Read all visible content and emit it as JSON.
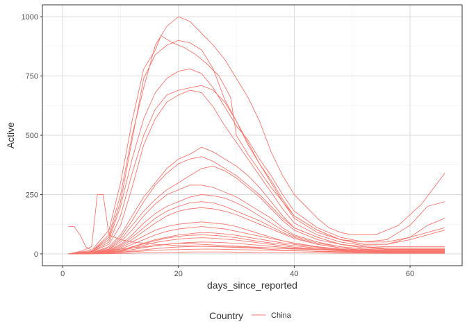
{
  "chart_data": {
    "type": "line",
    "title": "",
    "xlabel": "days_since_reported",
    "ylabel": "Active",
    "xlim": [
      -3.5,
      69
    ],
    "ylim": [
      -50,
      1050
    ],
    "x_ticks": [
      0,
      20,
      40,
      60
    ],
    "y_ticks": [
      0,
      250,
      500,
      750,
      1000
    ],
    "grid": true,
    "legend": {
      "title": "Country",
      "entries": [
        "China"
      ],
      "position": "bottom"
    },
    "series_color": "#F8766D",
    "series": [
      {
        "x": [
          1,
          5,
          8,
          10,
          12,
          14,
          16,
          18,
          20,
          22,
          24,
          26,
          28,
          30,
          32,
          34,
          36,
          38,
          40,
          42,
          44,
          46,
          48,
          50,
          54,
          58,
          62,
          66
        ],
        "values": [
          0,
          10,
          80,
          250,
          500,
          700,
          880,
          960,
          1000,
          980,
          930,
          880,
          820,
          740,
          660,
          560,
          430,
          330,
          250,
          200,
          150,
          110,
          90,
          80,
          80,
          120,
          210,
          340
        ]
      },
      {
        "x": [
          1,
          5,
          8,
          10,
          12,
          14,
          16,
          17,
          19,
          21,
          23,
          25,
          27,
          29,
          30,
          32,
          34,
          36,
          38,
          40,
          44,
          48,
          52,
          56,
          60,
          63,
          66
        ],
        "values": [
          0,
          15,
          100,
          300,
          560,
          780,
          860,
          920,
          890,
          870,
          840,
          800,
          750,
          660,
          500,
          420,
          350,
          280,
          220,
          160,
          100,
          60,
          50,
          60,
          120,
          200,
          220
        ]
      },
      {
        "x": [
          1,
          5,
          8,
          10,
          12,
          14,
          16,
          18,
          20,
          22,
          24,
          26,
          28,
          30,
          32,
          34,
          36,
          38,
          40,
          44,
          48,
          52,
          56,
          60,
          63,
          66
        ],
        "values": [
          0,
          10,
          70,
          220,
          480,
          740,
          840,
          880,
          900,
          890,
          860,
          780,
          650,
          560,
          470,
          380,
          310,
          230,
          160,
          100,
          60,
          40,
          40,
          70,
          120,
          150
        ]
      },
      {
        "x": [
          1,
          5,
          8,
          10,
          12,
          14,
          16,
          18,
          20,
          22,
          24,
          26,
          28,
          30,
          32,
          34,
          36,
          38,
          40,
          44,
          48,
          52,
          56,
          60,
          63,
          66
        ],
        "values": [
          0,
          10,
          60,
          200,
          400,
          570,
          680,
          740,
          770,
          780,
          760,
          700,
          620,
          540,
          480,
          400,
          330,
          250,
          180,
          110,
          70,
          50,
          50,
          70,
          90,
          110
        ]
      },
      {
        "x": [
          1,
          5,
          8,
          10,
          12,
          14,
          16,
          18,
          20,
          22,
          24,
          26,
          28,
          30,
          32,
          34,
          36,
          38,
          40,
          44,
          48,
          52,
          56,
          60,
          63,
          66
        ],
        "values": [
          0,
          8,
          50,
          160,
          340,
          500,
          610,
          670,
          690,
          700,
          710,
          690,
          640,
          560,
          460,
          380,
          300,
          220,
          150,
          90,
          60,
          40,
          40,
          60,
          80,
          100
        ]
      },
      {
        "x": [
          1,
          5,
          8,
          10,
          12,
          14,
          16,
          18,
          20,
          22,
          24,
          26,
          28,
          30,
          32,
          34,
          36,
          38,
          40,
          44,
          48,
          52,
          56,
          60,
          66
        ],
        "values": [
          0,
          8,
          40,
          120,
          280,
          460,
          570,
          640,
          670,
          690,
          680,
          620,
          540,
          470,
          400,
          330,
          260,
          190,
          130,
          80,
          50,
          35,
          30,
          30,
          30
        ]
      },
      {
        "x": [
          1,
          5,
          8,
          10,
          12,
          14,
          16,
          18,
          20,
          22,
          24,
          26,
          28,
          30,
          32,
          34,
          36,
          38,
          40,
          44,
          48,
          52,
          56,
          60,
          66
        ],
        "values": [
          0,
          5,
          30,
          80,
          160,
          240,
          300,
          360,
          400,
          420,
          450,
          430,
          400,
          370,
          330,
          280,
          220,
          160,
          110,
          70,
          40,
          30,
          25,
          25,
          25
        ]
      },
      {
        "x": [
          1,
          5,
          8,
          10,
          12,
          14,
          16,
          18,
          20,
          22,
          24,
          26,
          28,
          30,
          32,
          34,
          36,
          38,
          40,
          44,
          48,
          52,
          56,
          60,
          66
        ],
        "values": [
          0,
          5,
          25,
          70,
          140,
          220,
          290,
          340,
          380,
          400,
          410,
          390,
          360,
          330,
          290,
          250,
          200,
          150,
          110,
          70,
          40,
          30,
          20,
          20,
          20
        ]
      },
      {
        "x": [
          1,
          5,
          8,
          10,
          12,
          14,
          16,
          18,
          20,
          22,
          24,
          26,
          28,
          30,
          32,
          34,
          36,
          38,
          40,
          44,
          48,
          52,
          56,
          60,
          66
        ],
        "values": [
          0,
          4,
          20,
          60,
          120,
          180,
          230,
          270,
          300,
          330,
          360,
          370,
          350,
          320,
          280,
          240,
          190,
          140,
          100,
          60,
          40,
          25,
          20,
          20,
          20
        ]
      },
      {
        "x": [
          1,
          5,
          8,
          10,
          12,
          14,
          16,
          18,
          20,
          22,
          24,
          26,
          28,
          30,
          32,
          34,
          36,
          38,
          40,
          44,
          48,
          52,
          56,
          60,
          66
        ],
        "values": [
          0,
          4,
          18,
          50,
          100,
          160,
          210,
          250,
          270,
          290,
          290,
          280,
          260,
          240,
          210,
          180,
          150,
          110,
          80,
          50,
          30,
          20,
          15,
          15,
          15
        ]
      },
      {
        "x": [
          1,
          5,
          8,
          10,
          12,
          14,
          16,
          18,
          20,
          22,
          24,
          26,
          28,
          30,
          32,
          34,
          36,
          38,
          40,
          44,
          48,
          52,
          56,
          60,
          66
        ],
        "values": [
          0,
          3,
          15,
          40,
          80,
          130,
          170,
          200,
          220,
          240,
          250,
          245,
          235,
          215,
          190,
          160,
          130,
          100,
          75,
          45,
          30,
          20,
          15,
          15,
          15
        ]
      },
      {
        "x": [
          1,
          5,
          8,
          10,
          12,
          14,
          16,
          18,
          20,
          22,
          24,
          26,
          28,
          30,
          32,
          34,
          36,
          38,
          40,
          44,
          48,
          52,
          56,
          60,
          66
        ],
        "values": [
          0,
          3,
          12,
          35,
          70,
          110,
          150,
          180,
          200,
          215,
          220,
          215,
          200,
          180,
          160,
          140,
          115,
          90,
          70,
          40,
          25,
          15,
          12,
          12,
          12
        ]
      },
      {
        "x": [
          1,
          5,
          8,
          10,
          12,
          14,
          16,
          18,
          20,
          22,
          24,
          26,
          28,
          30,
          32,
          34,
          36,
          38,
          40,
          44,
          48,
          52,
          56,
          60,
          66
        ],
        "values": [
          0,
          3,
          10,
          30,
          60,
          95,
          130,
          160,
          180,
          190,
          195,
          190,
          180,
          165,
          145,
          125,
          105,
          85,
          65,
          40,
          25,
          15,
          10,
          10,
          10
        ]
      },
      {
        "x": [
          1,
          5,
          8,
          10,
          12,
          14,
          16,
          18,
          20,
          22,
          24,
          26,
          28,
          30,
          32,
          34,
          36,
          38,
          40,
          44,
          48,
          52,
          56,
          60,
          66
        ],
        "values": [
          0,
          2,
          8,
          25,
          50,
          75,
          100,
          115,
          125,
          130,
          135,
          130,
          125,
          115,
          100,
          85,
          70,
          55,
          45,
          30,
          20,
          12,
          10,
          10,
          10
        ]
      },
      {
        "x": [
          1,
          5,
          8,
          10,
          12,
          14,
          16,
          18,
          20,
          22,
          24,
          26,
          28,
          30,
          32,
          34,
          36,
          38,
          40,
          44,
          48,
          52,
          56,
          60,
          66
        ],
        "values": [
          0,
          2,
          7,
          20,
          40,
          60,
          80,
          95,
          105,
          110,
          115,
          110,
          105,
          95,
          85,
          75,
          65,
          55,
          45,
          30,
          20,
          12,
          10,
          10,
          10
        ]
      },
      {
        "x": [
          1,
          5,
          8,
          10,
          12,
          14,
          16,
          18,
          20,
          22,
          24,
          26,
          28,
          30,
          32,
          34,
          36,
          38,
          40,
          44,
          48,
          52,
          56,
          60,
          66
        ],
        "values": [
          0,
          2,
          6,
          15,
          30,
          45,
          60,
          70,
          80,
          85,
          90,
          88,
          84,
          78,
          70,
          62,
          54,
          46,
          40,
          28,
          18,
          12,
          10,
          10,
          10
        ]
      },
      {
        "x": [
          1,
          5,
          8,
          10,
          12,
          14,
          16,
          18,
          20,
          22,
          24,
          26,
          28,
          30,
          32,
          34,
          36,
          38,
          40,
          44,
          48,
          52,
          56,
          60,
          66
        ],
        "values": [
          0,
          1,
          5,
          12,
          24,
          36,
          48,
          56,
          62,
          66,
          68,
          66,
          62,
          58,
          52,
          46,
          40,
          34,
          28,
          20,
          14,
          10,
          8,
          8,
          8
        ]
      },
      {
        "x": [
          1,
          5,
          8,
          10,
          12,
          14,
          16,
          18,
          20,
          22,
          24,
          26,
          28,
          30,
          32,
          34,
          36,
          38,
          40,
          44,
          48,
          52,
          56,
          60,
          66
        ],
        "values": [
          0,
          1,
          4,
          10,
          18,
          26,
          34,
          40,
          45,
          48,
          50,
          49,
          47,
          44,
          40,
          36,
          32,
          28,
          24,
          18,
          12,
          8,
          6,
          6,
          6
        ]
      },
      {
        "x": [
          1,
          5,
          8,
          10,
          12,
          14,
          16,
          18,
          20,
          22,
          24,
          26,
          28,
          30,
          32,
          34,
          36,
          38,
          40,
          44,
          48,
          52,
          56,
          60,
          66
        ],
        "values": [
          0,
          1,
          3,
          7,
          12,
          17,
          22,
          26,
          29,
          31,
          32,
          31,
          29,
          27,
          25,
          22,
          19,
          16,
          14,
          10,
          7,
          5,
          4,
          4,
          4
        ]
      },
      {
        "x": [
          1,
          3,
          5,
          6,
          7,
          8,
          10,
          12,
          14,
          16,
          18,
          20,
          24,
          28,
          32,
          36,
          40,
          44,
          48,
          52,
          56,
          60,
          66
        ],
        "values": [
          0,
          10,
          30,
          250,
          250,
          80,
          60,
          50,
          45,
          40,
          38,
          35,
          32,
          30,
          28,
          25,
          22,
          20,
          18,
          18,
          18,
          18,
          18
        ]
      },
      {
        "x": [
          1,
          2,
          3,
          4,
          5,
          6,
          8,
          10,
          12,
          14,
          16,
          18,
          20,
          24,
          28,
          32,
          36,
          40,
          44,
          48,
          52,
          56,
          60,
          66
        ],
        "values": [
          115,
          115,
          80,
          30,
          15,
          10,
          15,
          20,
          25,
          30,
          35,
          40,
          45,
          40,
          35,
          30,
          25,
          20,
          18,
          15,
          15,
          15,
          15,
          15
        ]
      },
      {
        "x": [
          1,
          5,
          8,
          10,
          12,
          14,
          16,
          18,
          20,
          22,
          24,
          26,
          28,
          30,
          32,
          34,
          36,
          38,
          40,
          44,
          48,
          52,
          56,
          60,
          66
        ],
        "values": [
          0,
          2,
          6,
          14,
          28,
          42,
          56,
          66,
          74,
          78,
          80,
          78,
          74,
          68,
          60,
          52,
          46,
          40,
          34,
          24,
          16,
          10,
          8,
          8,
          8
        ]
      },
      {
        "x": [
          1,
          5,
          8,
          10,
          12,
          14,
          16,
          18,
          20,
          22,
          24,
          26,
          28,
          30,
          32,
          34,
          36,
          38,
          40,
          44,
          48,
          52,
          56,
          60,
          66
        ],
        "values": [
          0,
          1,
          3,
          6,
          9,
          12,
          15,
          17,
          18,
          19,
          20,
          20,
          19,
          18,
          17,
          16,
          15,
          14,
          13,
          11,
          9,
          8,
          7,
          7,
          7
        ]
      },
      {
        "x": [
          1,
          5,
          8,
          10,
          12,
          14,
          16,
          18,
          20,
          22,
          24,
          26,
          28,
          30,
          32,
          34,
          36,
          38,
          40,
          44,
          48,
          52,
          56,
          60,
          66
        ],
        "values": [
          0,
          0,
          1,
          2,
          3,
          4,
          5,
          6,
          7,
          8,
          8,
          8,
          8,
          7,
          7,
          6,
          6,
          5,
          5,
          4,
          3,
          3,
          2,
          2,
          2
        ]
      }
    ]
  }
}
